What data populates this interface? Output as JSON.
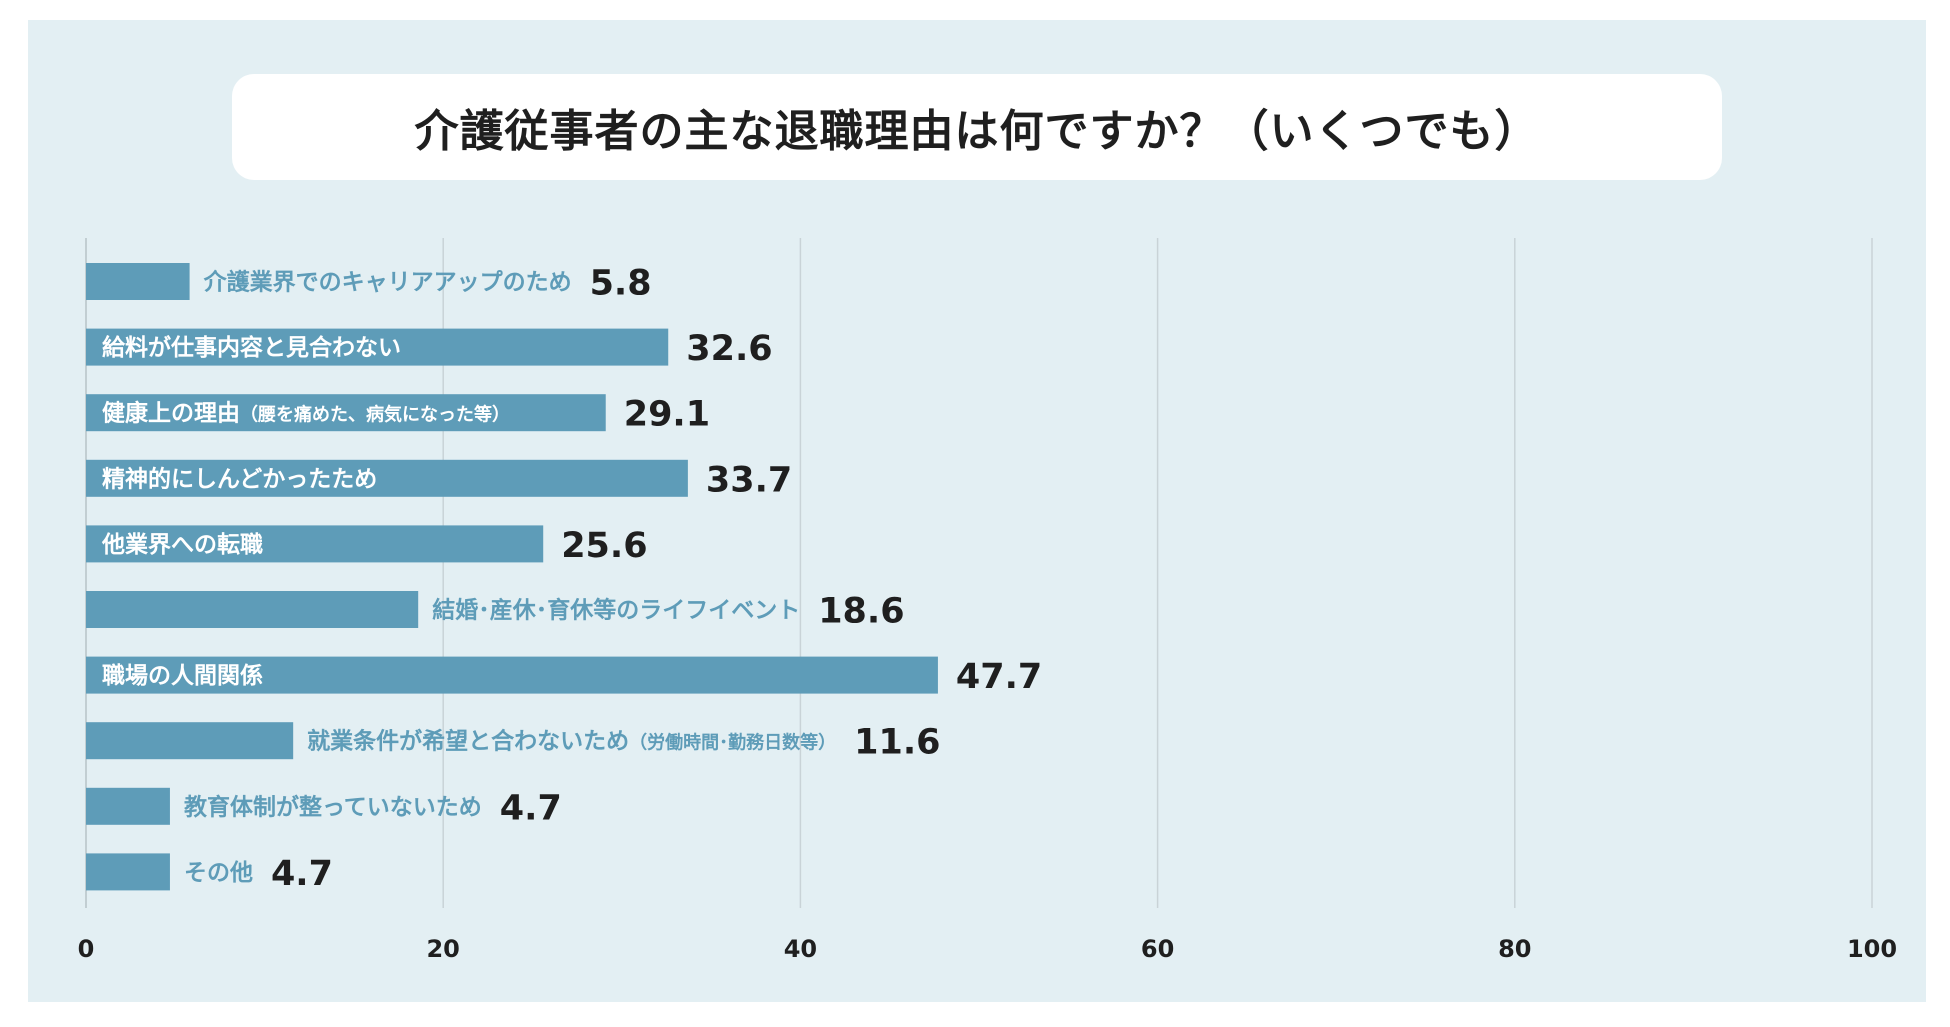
{
  "chart_data": {
    "type": "bar",
    "orientation": "horizontal",
    "title": "介護従事者の主な退職理由は何ですか？（いくつでも）",
    "xlim": [
      0,
      100
    ],
    "xticks": [
      0,
      20,
      40,
      60,
      80,
      100
    ],
    "xtick_labels": [
      "0",
      "20",
      "40",
      "60",
      "80",
      "100"
    ],
    "grid": true,
    "bar_color": "#5e9cb8",
    "categories": [
      {
        "label": "介護業界でのキャリアアップのため",
        "sub": "",
        "value": 5.8,
        "value_label": "5.8"
      },
      {
        "label": "給料が仕事内容と見合わない",
        "sub": "",
        "value": 32.6,
        "value_label": "32.6"
      },
      {
        "label": "健康上の理由",
        "sub": "（腰を痛めた、病気になった等）",
        "value": 29.1,
        "value_label": "29.1"
      },
      {
        "label": "精神的にしんどかったため",
        "sub": "",
        "value": 33.7,
        "value_label": "33.7"
      },
      {
        "label": "他業界への転職",
        "sub": "",
        "value": 25.6,
        "value_label": "25.6"
      },
      {
        "label": "結婚･産休･育休等のライフイベント",
        "sub": "",
        "value": 18.6,
        "value_label": "18.6"
      },
      {
        "label": "職場の人間関係",
        "sub": "",
        "value": 47.7,
        "value_label": "47.7"
      },
      {
        "label": "就業条件が希望と合わないため",
        "sub": "（労働時間･勤務日数等）",
        "value": 11.6,
        "value_label": "11.6"
      },
      {
        "label": "教育体制が整っていないため",
        "sub": "",
        "value": 4.7,
        "value_label": "4.7"
      },
      {
        "label": "その他",
        "sub": "",
        "value": 4.7,
        "value_label": "4.7"
      }
    ]
  }
}
